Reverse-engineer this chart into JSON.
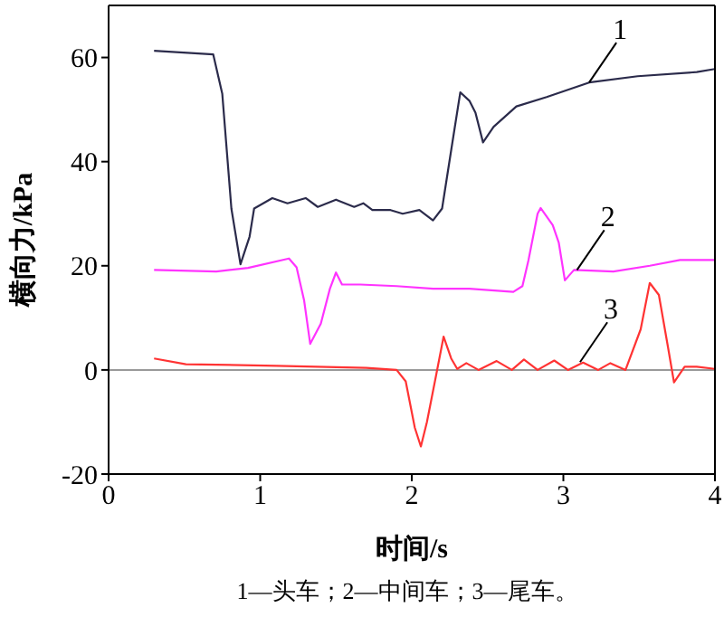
{
  "chart_data": {
    "type": "line",
    "xlabel": "时间/s",
    "ylabel": "横向力/kPa",
    "xlim": [
      0,
      4
    ],
    "xticks": [
      0,
      1,
      2,
      3,
      4
    ],
    "ylim": [
      -20,
      70
    ],
    "yticks": [
      -20,
      0,
      20,
      40,
      60
    ],
    "grid": false,
    "legend": false,
    "marker": "none",
    "line_style": "solid",
    "ref_lines": [
      {
        "axis": "y",
        "value": 0,
        "color": "#999999"
      }
    ],
    "annotations": [
      {
        "text": "1",
        "x": 3.17,
        "y": 55.2
      },
      {
        "text": "2",
        "x": 3.09,
        "y": 19.2
      },
      {
        "text": "3",
        "x": 3.11,
        "y": 1.5
      },
      "1—头车；2—中间车；3—尾车。"
    ],
    "series": [
      {
        "color": "#2b2b4b",
        "x": [
          0.3,
          0.69,
          0.75,
          0.81,
          0.87,
          0.93,
          0.96,
          1.08,
          1.18,
          1.3,
          1.38,
          1.5,
          1.62,
          1.68,
          1.74,
          1.86,
          1.94,
          2.05,
          2.14,
          2.2,
          2.26,
          2.32,
          2.38,
          2.42,
          2.47,
          2.54,
          2.69,
          2.89,
          3.17,
          3.49,
          3.88,
          4.0
        ],
        "values": [
          61.3,
          60.6,
          53,
          31,
          20.3,
          25.6,
          31,
          33,
          32,
          33,
          31.3,
          32.7,
          31.3,
          32,
          30.7,
          30.7,
          30,
          30.7,
          28.7,
          31,
          42.2,
          53.3,
          51.7,
          49.4,
          43.7,
          46.7,
          50.6,
          52.4,
          55.2,
          56.4,
          57.2,
          57.8
        ]
      },
      {
        "color": "#ff33ff",
        "x": [
          0.3,
          0.71,
          0.92,
          1.19,
          1.24,
          1.29,
          1.33,
          1.4,
          1.46,
          1.5,
          1.54,
          1.66,
          1.9,
          2.14,
          2.38,
          2.67,
          2.73,
          2.77,
          2.83,
          2.85,
          2.93,
          2.97,
          3.01,
          3.07,
          3.33,
          3.57,
          3.77,
          4.0
        ],
        "values": [
          19.2,
          18.9,
          19.6,
          21.4,
          19.7,
          13.3,
          5,
          8.9,
          15.6,
          18.7,
          16.4,
          16.4,
          16.1,
          15.6,
          15.6,
          15,
          16.1,
          21.1,
          30,
          31.1,
          27.8,
          24.4,
          17.2,
          19.2,
          18.9,
          20,
          21.1,
          21.1
        ]
      },
      {
        "color": "#ff3333",
        "x": [
          0.3,
          0.51,
          1.11,
          1.7,
          1.9,
          1.96,
          2.02,
          2.06,
          2.1,
          2.16,
          2.21,
          2.26,
          2.3,
          2.36,
          2.44,
          2.56,
          2.66,
          2.74,
          2.83,
          2.94,
          3.03,
          3.13,
          3.23,
          3.31,
          3.41,
          3.51,
          3.57,
          3.63,
          3.69,
          3.73,
          3.8,
          3.88,
          4.0
        ],
        "values": [
          2.2,
          1.1,
          0.8,
          0.4,
          0,
          -2.2,
          -11.1,
          -14.7,
          -10,
          -1.1,
          6.4,
          2.2,
          0.2,
          1.3,
          0,
          1.7,
          0,
          2,
          0,
          1.8,
          0,
          1.4,
          0,
          1.3,
          0,
          7.8,
          16.7,
          14.4,
          4.4,
          -2.4,
          0.6,
          0.6,
          0.2
        ]
      }
    ]
  }
}
